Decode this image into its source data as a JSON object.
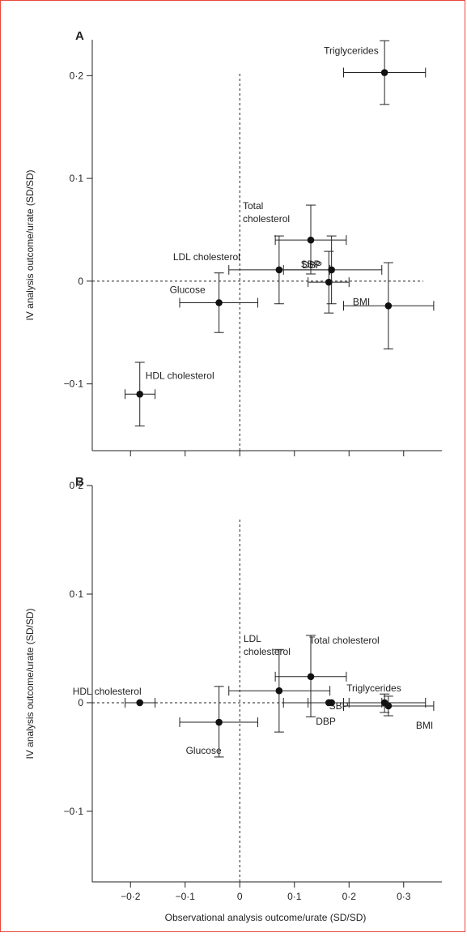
{
  "chart_data": [
    {
      "type": "scatter",
      "panel": "A",
      "xlim": [
        -0.27,
        0.37
      ],
      "ylim": [
        -0.165,
        0.235
      ],
      "xticks": [
        -0.2,
        -0.1,
        0,
        0.1,
        0.2,
        0.3
      ],
      "xtick_labels": [
        "",
        "",
        "",
        "",
        "",
        ""
      ],
      "yticks": [
        -0.1,
        0,
        0.1,
        0.2
      ],
      "ytick_labels": [
        "−0·1",
        "0",
        "0·1",
        "0·2"
      ],
      "ylabel": "IV analysis outcome/urate (SD/SD)",
      "xlabel": "",
      "reference_lines": {
        "x": 0,
        "y": 0,
        "style": "dashed"
      },
      "points": [
        {
          "label": "Triglycerides",
          "x": 0.265,
          "y": 0.203,
          "xlo": 0.19,
          "xhi": 0.34,
          "ylo": 0.172,
          "yhi": 0.234
        },
        {
          "label": "Total cholesterol",
          "x": 0.13,
          "y": 0.04,
          "xlo": 0.065,
          "xhi": 0.195,
          "ylo": 0.007,
          "yhi": 0.074
        },
        {
          "label": "LDL cholesterol",
          "x": 0.072,
          "y": 0.011,
          "xlo": -0.02,
          "xhi": 0.165,
          "ylo": -0.022,
          "yhi": 0.044
        },
        {
          "label": "DBP",
          "x": 0.163,
          "y": -0.001,
          "xlo": 0.125,
          "xhi": 0.2,
          "ylo": -0.031,
          "yhi": 0.029
        },
        {
          "label": "SBP",
          "x": 0.168,
          "y": 0.011,
          "xlo": 0.08,
          "xhi": 0.26,
          "ylo": -0.022,
          "yhi": 0.044
        },
        {
          "label": "BMI",
          "x": 0.272,
          "y": -0.024,
          "xlo": 0.19,
          "xhi": 0.355,
          "ylo": -0.066,
          "yhi": 0.018
        },
        {
          "label": "Glucose",
          "x": -0.038,
          "y": -0.021,
          "xlo": -0.11,
          "xhi": 0.033,
          "ylo": -0.05,
          "yhi": 0.008
        },
        {
          "label": "HDL cholesterol",
          "x": -0.183,
          "y": -0.11,
          "xlo": -0.21,
          "xhi": -0.155,
          "ylo": -0.141,
          "yhi": -0.079
        }
      ]
    },
    {
      "type": "scatter",
      "panel": "B",
      "xlim": [
        -0.27,
        0.37
      ],
      "ylim": [
        -0.165,
        0.2
      ],
      "xticks": [
        -0.2,
        -0.1,
        0,
        0.1,
        0.2,
        0.3
      ],
      "xtick_labels": [
        "−0·2",
        "−0·1",
        "0",
        "0·1",
        "0·2",
        "0·3"
      ],
      "yticks": [
        -0.1,
        0,
        0.1,
        0.2
      ],
      "ytick_labels": [
        "−0·1",
        "0",
        "0·1",
        "0·2"
      ],
      "ylabel": "IV analysis outcome/urate (SD/SD)",
      "xlabel": "Observational analysis outcome/urate (SD/SD)",
      "reference_lines": {
        "x": 0,
        "y": 0,
        "style": "dashed"
      },
      "points": [
        {
          "label": "Total cholesterol",
          "x": 0.13,
          "y": 0.024,
          "xlo": 0.065,
          "xhi": 0.195,
          "ylo": -0.013,
          "yhi": 0.062
        },
        {
          "label": "LDL cholesterol",
          "x": 0.072,
          "y": 0.011,
          "xlo": -0.02,
          "xhi": 0.165,
          "ylo": -0.027,
          "yhi": 0.049
        },
        {
          "label": "SBP",
          "x": 0.168,
          "y": 0.0,
          "xlo": 0.08,
          "xhi": 0.26,
          "ylo": 0.0,
          "yhi": 0.0
        },
        {
          "label": "DBP",
          "x": 0.163,
          "y": 0.0,
          "xlo": 0.125,
          "xhi": 0.2,
          "ylo": 0.0,
          "yhi": 0.0
        },
        {
          "label": "Triglycerides",
          "x": 0.265,
          "y": 0.0,
          "xlo": 0.19,
          "xhi": 0.34,
          "ylo": -0.009,
          "yhi": 0.008
        },
        {
          "label": "BMI",
          "x": 0.272,
          "y": -0.003,
          "xlo": 0.19,
          "xhi": 0.355,
          "ylo": -0.012,
          "yhi": 0.006
        },
        {
          "label": "Glucose",
          "x": -0.038,
          "y": -0.018,
          "xlo": -0.11,
          "xhi": 0.033,
          "ylo": -0.05,
          "yhi": 0.015
        },
        {
          "label": "HDL cholesterol",
          "x": -0.183,
          "y": 0.0,
          "xlo": -0.21,
          "xhi": -0.155,
          "ylo": 0.0,
          "yhi": 0.0
        }
      ]
    }
  ]
}
